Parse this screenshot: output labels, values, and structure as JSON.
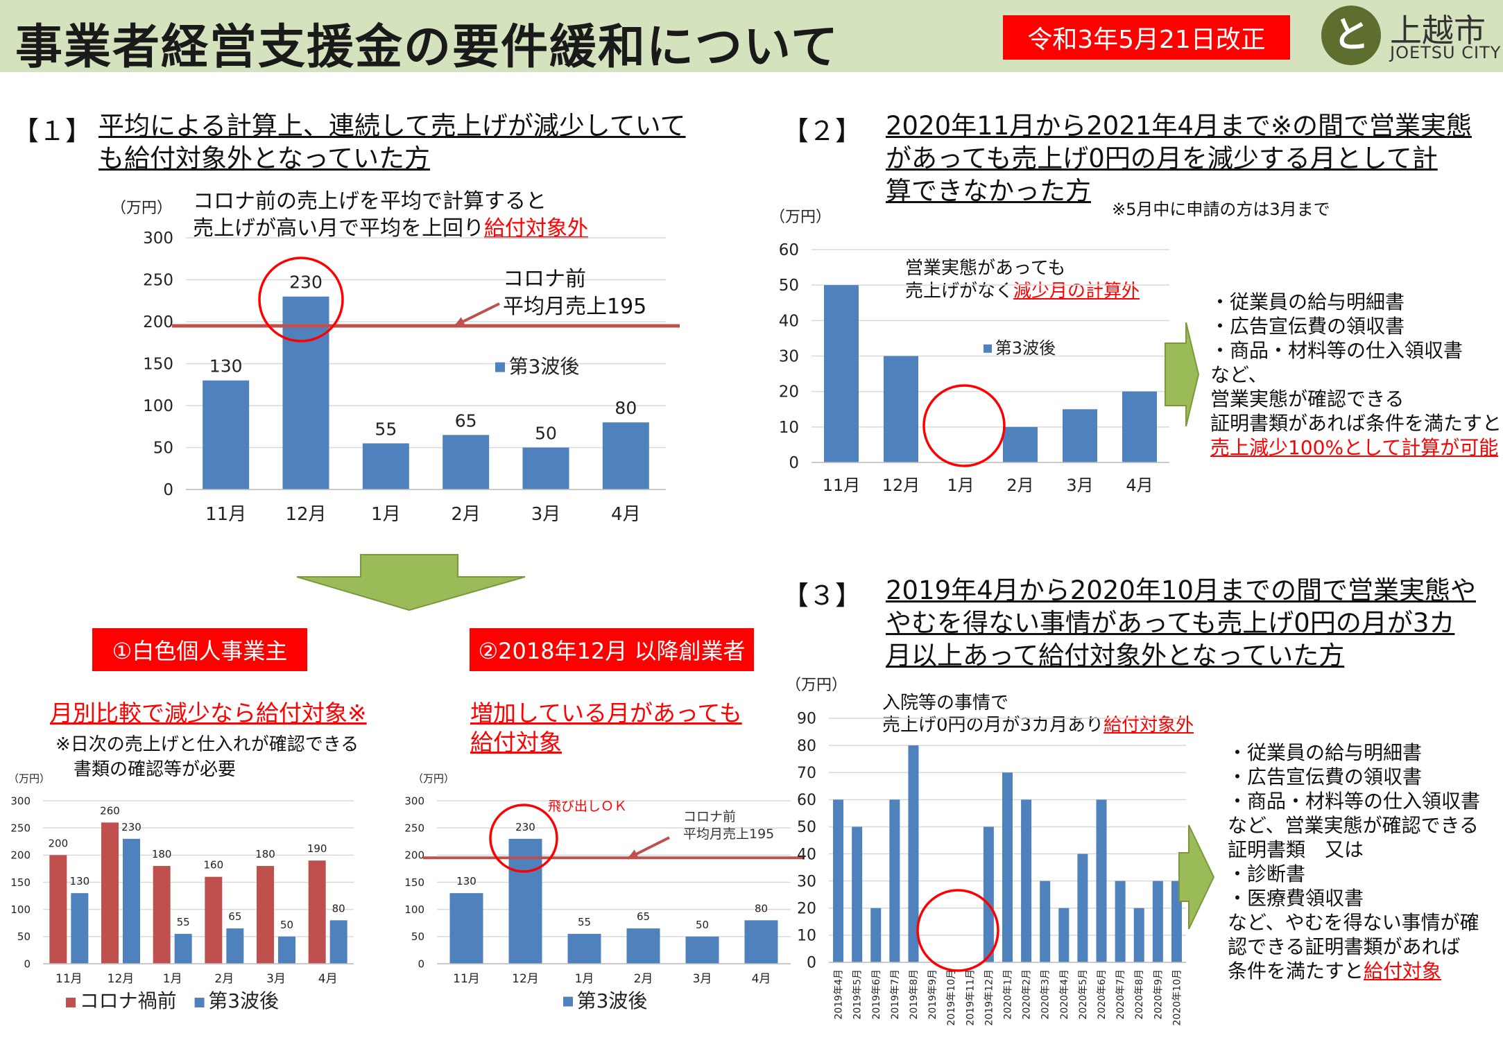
{
  "header": {
    "title": "事業者経営支援金の要件緩和について",
    "revision_badge": "令和3年5月21日改正",
    "logo_mark": "と",
    "city_name": "上越市",
    "city_name_en": "JOETSU CITY"
  },
  "colors": {
    "bar_blue": "#4f81bd",
    "bar_red": "#c0504d",
    "accent_red": "#ff0000",
    "arrow_green": "#9bbb59",
    "header_bg": "#d4e2bd"
  },
  "section1": {
    "num": "【１】",
    "heading": [
      "平均による計算上、連続して売上げが減少していて",
      "も給付対象外となっていた方"
    ],
    "note_line1": "コロナ前の売上げを平均で計算すると",
    "note_line2_pre": "売上げが高い月で平均を上回り",
    "note_line2_red": "給付対象外",
    "ref_label": [
      "コロナ前",
      "平均月売上195"
    ],
    "box1": "①白色個人事業主",
    "box2": "②2018年12月 以降創業者",
    "left_title": "月別比較で減少なら給付対象※",
    "left_note": [
      "※日次の売上げと仕入れが確認できる",
      "書類の確認等が必要"
    ],
    "right_title": [
      "増加している月があっても",
      "給付対象"
    ],
    "spike_label": "飛び出しＯＫ",
    "ref_label_small": [
      "コロナ前",
      "平均月売上195"
    ]
  },
  "section2": {
    "num": "【２】",
    "heading": [
      "2020年11月から2021年4月まで※の間で営業実態",
      "があっても売上げ0円の月を減少する月として計",
      "算できなかった方"
    ],
    "footnote": "※5月中に申請の方は3月まで",
    "note_line1": "営業実態があっても",
    "note_line2_pre": "売上げがなく",
    "note_line2_red": "減少月の計算外",
    "side_lines": [
      "・従業員の給与明細書",
      "・広告宣伝費の領収書",
      "・商品・材料等の仕入領収書",
      "など、",
      "営業実態が確認できる",
      "証明書類があれば条件を満たすと"
    ],
    "side_red": "売上減少100%として計算が可能"
  },
  "section3": {
    "num": "【３】",
    "heading": [
      "2019年4月から2020年10月までの間で営業実態や",
      "やむを得ない事情があっても売上げ0円の月が3カ",
      "月以上あって給付対象外となっていた方"
    ],
    "note_line1": "入院等の事情で",
    "note_line2_pre": "売上げ0円の月が3カ月あり",
    "note_line2_red": "給付対象外",
    "side_lines": [
      "・従業員の給与明細書",
      "・広告宣伝費の領収書",
      "・商品・材料等の仕入領収書",
      "など、営業実態が確認できる",
      "証明書類　又は",
      "・診断書",
      "・医療費領収書",
      "など、やむを得ない事情が確",
      "認できる証明書類があれば"
    ],
    "side_last_pre": "条件を満たすと",
    "side_last_red": "給付対象"
  },
  "chart_data": [
    {
      "id": "c1",
      "type": "bar",
      "categories": [
        "11月",
        "12月",
        "1月",
        "2月",
        "3月",
        "4月"
      ],
      "series": [
        {
          "name": "第3波後",
          "values": [
            130,
            230,
            55,
            65,
            50,
            80
          ]
        }
      ],
      "ylabel": "（万円）",
      "ylim": [
        0,
        300
      ],
      "yticks": [
        0,
        50,
        100,
        150,
        200,
        250,
        300
      ],
      "reference_line": 195,
      "highlight": "12月",
      "legend": "right"
    },
    {
      "id": "c2",
      "type": "bar",
      "categories": [
        "11月",
        "12月",
        "1月",
        "2月",
        "3月",
        "4月"
      ],
      "series": [
        {
          "name": "第3波後",
          "values": [
            50,
            30,
            0,
            10,
            15,
            20
          ]
        }
      ],
      "ylabel": "（万円）",
      "ylim": [
        0,
        60
      ],
      "yticks": [
        0,
        10,
        20,
        30,
        40,
        50,
        60
      ],
      "highlight": "1月",
      "legend": "middle"
    },
    {
      "id": "c3",
      "type": "bar",
      "categories": [
        "11月",
        "12月",
        "1月",
        "2月",
        "3月",
        "4月"
      ],
      "series": [
        {
          "name": "コロナ禍前",
          "values": [
            200,
            260,
            180,
            160,
            180,
            190
          ]
        },
        {
          "name": "第3波後",
          "values": [
            130,
            230,
            55,
            65,
            50,
            80
          ]
        }
      ],
      "ylabel": "（万円）",
      "ylim": [
        0,
        300
      ],
      "yticks": [
        0,
        50,
        100,
        150,
        200,
        250,
        300
      ],
      "legend": "bottom"
    },
    {
      "id": "c4",
      "type": "bar",
      "categories": [
        "11月",
        "12月",
        "1月",
        "2月",
        "3月",
        "4月"
      ],
      "series": [
        {
          "name": "第3波後",
          "values": [
            130,
            230,
            55,
            65,
            50,
            80
          ]
        }
      ],
      "ylabel": "（万円）",
      "ylim": [
        0,
        300
      ],
      "yticks": [
        0,
        50,
        100,
        150,
        200,
        250,
        300
      ],
      "reference_line": 195,
      "highlight": "12月",
      "legend": "bottom"
    },
    {
      "id": "c5",
      "type": "bar",
      "categories": [
        "2019年4月",
        "2019年5月",
        "2019年6月",
        "2019年7月",
        "2019年8月",
        "2019年9月",
        "2019年10月",
        "2019年11月",
        "2019年12月",
        "2020年1月",
        "2020年2月",
        "2020年3月",
        "2020年4月",
        "2020年5月",
        "2020年6月",
        "2020年7月",
        "2020年8月",
        "2020年9月",
        "2020年10月"
      ],
      "series": [
        {
          "name": "",
          "values": [
            60,
            50,
            20,
            60,
            80,
            0,
            0,
            0,
            50,
            70,
            60,
            30,
            20,
            40,
            60,
            30,
            20,
            30,
            30
          ]
        }
      ],
      "ylabel": "（万円）",
      "ylim": [
        0,
        90
      ],
      "yticks": [
        0,
        10,
        20,
        30,
        40,
        50,
        60,
        70,
        80,
        90
      ],
      "highlight": "2019年10月"
    }
  ]
}
